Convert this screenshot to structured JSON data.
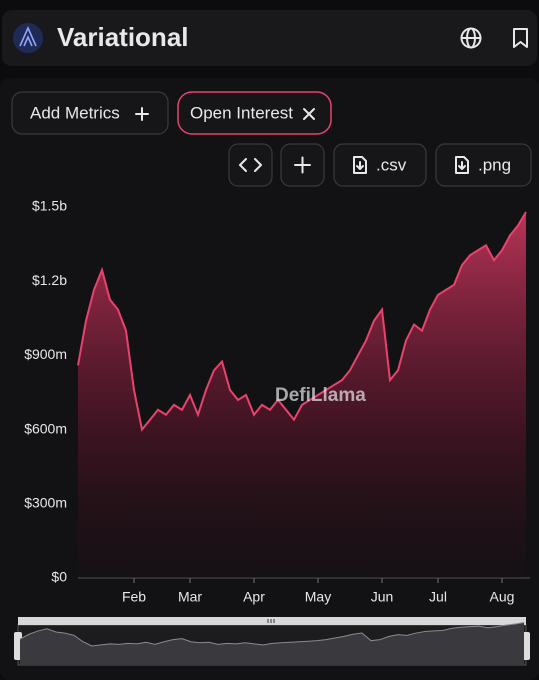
{
  "header": {
    "title": "Variational"
  },
  "toolbar": {
    "add_metrics": "Add Metrics",
    "active_metric": "Open Interest",
    "exports": [
      ".csv",
      ".png"
    ]
  },
  "chart_data": {
    "type": "area",
    "watermark": "DefiLlama",
    "color": "#e8436e",
    "categories": [
      null,
      null,
      null,
      null,
      null,
      null,
      null,
      "Feb",
      null,
      null,
      null,
      null,
      null,
      null,
      "Mar",
      null,
      null,
      null,
      null,
      null,
      null,
      null,
      "Apr",
      null,
      null,
      null,
      null,
      null,
      null,
      null,
      "May",
      null,
      null,
      null,
      null,
      null,
      null,
      null,
      "Jun",
      null,
      null,
      null,
      null,
      null,
      null,
      "Jul",
      null,
      null,
      null,
      null,
      null,
      null,
      null,
      "Aug",
      null,
      null,
      null
    ],
    "values": [
      860,
      1040,
      1165,
      1245,
      1125,
      1085,
      1000,
      760,
      600,
      640,
      680,
      660,
      700,
      680,
      740,
      660,
      760,
      840,
      875,
      760,
      720,
      740,
      660,
      700,
      680,
      720,
      680,
      640,
      700,
      720,
      740,
      760,
      780,
      800,
      840,
      900,
      960,
      1040,
      1085,
      800,
      840,
      960,
      1025,
      1000,
      1085,
      1145,
      1165,
      1185,
      1265,
      1305,
      1325,
      1345,
      1285,
      1325,
      1385,
      1425,
      1480
    ],
    "ylim": [
      0,
      1500
    ],
    "yticks": [
      {
        "value": 0,
        "label": "$0"
      },
      {
        "value": 300,
        "label": "$300m"
      },
      {
        "value": 600,
        "label": "$600m"
      },
      {
        "value": 900,
        "label": "$900m"
      },
      {
        "value": 1200,
        "label": "$1.2b"
      },
      {
        "value": 1500,
        "label": "$1.5b"
      }
    ],
    "grid": false
  }
}
